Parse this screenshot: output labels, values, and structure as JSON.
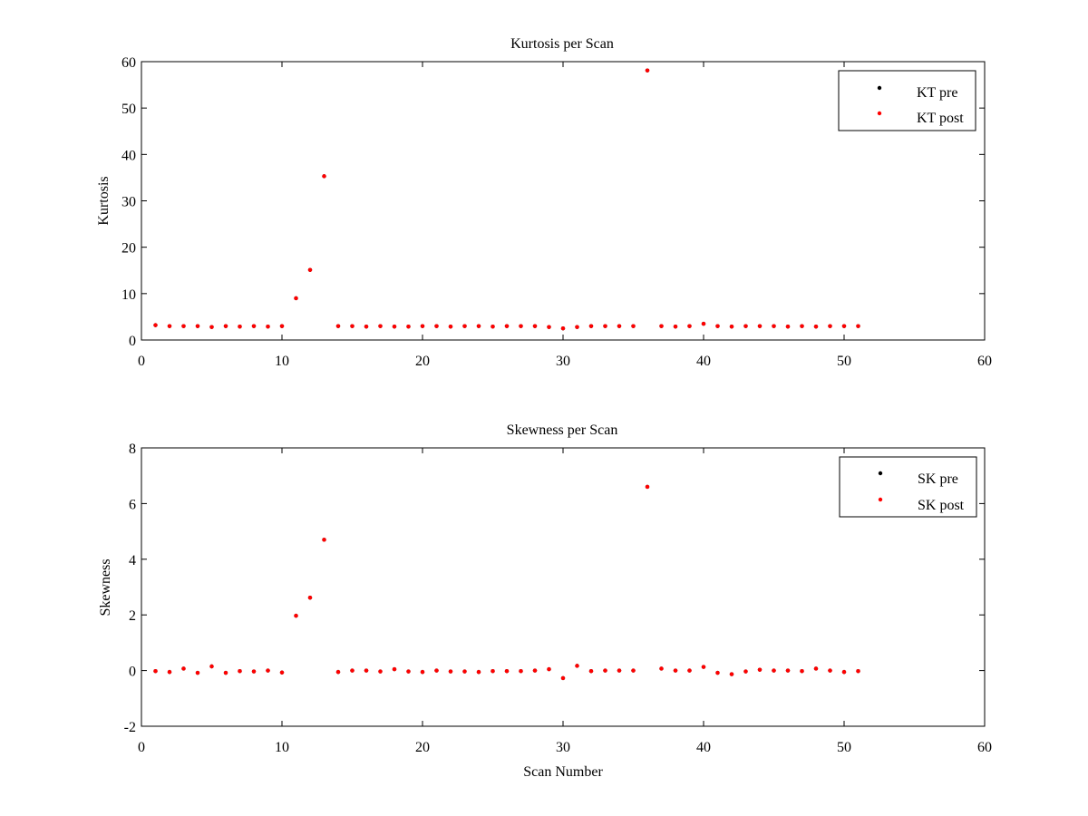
{
  "colors": {
    "pre": "#000000",
    "post": "#ff0000",
    "axes": "#000000",
    "background": "#ffffff"
  },
  "chart_data": [
    {
      "type": "scatter",
      "title": "Kurtosis per Scan",
      "xlabel": "",
      "ylabel": "Kurtosis",
      "xlim": [
        0,
        60
      ],
      "ylim": [
        0,
        60
      ],
      "xticks": [
        0,
        10,
        20,
        30,
        40,
        50,
        60
      ],
      "yticks": [
        0,
        10,
        20,
        30,
        40,
        50,
        60
      ],
      "grid": false,
      "legend_position": "top-right",
      "series": [
        {
          "name": "KT pre",
          "color": "#000000",
          "marker": "dot",
          "x": [
            1,
            2,
            3,
            4,
            5,
            6,
            7,
            8,
            9,
            10,
            11,
            12,
            13,
            14,
            15,
            16,
            17,
            18,
            19,
            20,
            21,
            22,
            23,
            24,
            25,
            26,
            27,
            28,
            29,
            30,
            31,
            32,
            33,
            34,
            35,
            36,
            37,
            38,
            39,
            40,
            41,
            42,
            43,
            44,
            45,
            46,
            47,
            48,
            49,
            50,
            51
          ],
          "y": [
            3.2,
            3.0,
            3.0,
            3.0,
            2.8,
            3.0,
            2.9,
            3.0,
            2.9,
            3.0,
            9.0,
            15.1,
            35.3,
            3.0,
            3.0,
            2.9,
            3.0,
            2.9,
            2.9,
            3.0,
            3.0,
            2.9,
            3.0,
            3.0,
            2.9,
            3.0,
            3.0,
            3.0,
            2.8,
            2.5,
            2.8,
            3.0,
            3.0,
            3.0,
            3.0,
            58.1,
            3.0,
            2.9,
            3.0,
            3.5,
            3.0,
            2.9,
            3.0,
            3.0,
            3.0,
            2.9,
            3.0,
            2.9,
            3.0,
            3.0,
            3.0
          ]
        },
        {
          "name": "KT post",
          "color": "#ff0000",
          "marker": "dot",
          "x": [
            1,
            2,
            3,
            4,
            5,
            6,
            7,
            8,
            9,
            10,
            11,
            12,
            13,
            14,
            15,
            16,
            17,
            18,
            19,
            20,
            21,
            22,
            23,
            24,
            25,
            26,
            27,
            28,
            29,
            30,
            31,
            32,
            33,
            34,
            35,
            36,
            37,
            38,
            39,
            40,
            41,
            42,
            43,
            44,
            45,
            46,
            47,
            48,
            49,
            50,
            51
          ],
          "y": [
            3.2,
            3.0,
            3.0,
            3.0,
            2.8,
            3.0,
            2.9,
            3.0,
            2.9,
            3.0,
            9.0,
            15.1,
            35.3,
            3.0,
            3.0,
            2.9,
            3.0,
            2.9,
            2.9,
            3.0,
            3.0,
            2.9,
            3.0,
            3.0,
            2.9,
            3.0,
            3.0,
            3.0,
            2.8,
            2.5,
            2.8,
            3.0,
            3.0,
            3.0,
            3.0,
            58.1,
            3.0,
            2.9,
            3.0,
            3.5,
            3.0,
            2.9,
            3.0,
            3.0,
            3.0,
            2.9,
            3.0,
            2.9,
            3.0,
            3.0,
            3.0
          ]
        }
      ]
    },
    {
      "type": "scatter",
      "title": "Skewness per Scan",
      "xlabel": "Scan Number",
      "ylabel": "Skewness",
      "xlim": [
        0,
        60
      ],
      "ylim": [
        -2,
        8
      ],
      "xticks": [
        0,
        10,
        20,
        30,
        40,
        50,
        60
      ],
      "yticks": [
        -2,
        0,
        2,
        4,
        6,
        8
      ],
      "grid": false,
      "legend_position": "top-right",
      "series": [
        {
          "name": "SK pre",
          "color": "#000000",
          "marker": "dot",
          "x": [
            1,
            2,
            3,
            4,
            5,
            6,
            7,
            8,
            9,
            10,
            11,
            12,
            13,
            14,
            15,
            16,
            17,
            18,
            19,
            20,
            21,
            22,
            23,
            24,
            25,
            26,
            27,
            28,
            29,
            30,
            31,
            32,
            33,
            34,
            35,
            36,
            37,
            38,
            39,
            40,
            41,
            42,
            43,
            44,
            45,
            46,
            47,
            48,
            49,
            50,
            51
          ],
          "y": [
            -0.02,
            -0.05,
            0.07,
            -0.08,
            0.15,
            -0.08,
            -0.02,
            -0.03,
            0.0,
            -0.07,
            1.97,
            2.62,
            4.7,
            -0.05,
            0.0,
            0.0,
            -0.03,
            0.05,
            -0.03,
            -0.05,
            0.0,
            -0.03,
            -0.03,
            -0.05,
            -0.02,
            -0.02,
            -0.02,
            0.0,
            0.05,
            -0.27,
            0.17,
            -0.02,
            0.0,
            0.0,
            0.0,
            6.6,
            0.07,
            0.0,
            0.0,
            0.13,
            -0.08,
            -0.13,
            -0.03,
            0.03,
            0.0,
            0.0,
            -0.02,
            0.07,
            0.0,
            -0.05,
            -0.02
          ]
        },
        {
          "name": "SK post",
          "color": "#ff0000",
          "marker": "dot",
          "x": [
            1,
            2,
            3,
            4,
            5,
            6,
            7,
            8,
            9,
            10,
            11,
            12,
            13,
            14,
            15,
            16,
            17,
            18,
            19,
            20,
            21,
            22,
            23,
            24,
            25,
            26,
            27,
            28,
            29,
            30,
            31,
            32,
            33,
            34,
            35,
            36,
            37,
            38,
            39,
            40,
            41,
            42,
            43,
            44,
            45,
            46,
            47,
            48,
            49,
            50,
            51
          ],
          "y": [
            -0.02,
            -0.05,
            0.07,
            -0.08,
            0.15,
            -0.08,
            -0.02,
            -0.03,
            0.0,
            -0.07,
            1.97,
            2.62,
            4.7,
            -0.05,
            0.0,
            0.0,
            -0.03,
            0.05,
            -0.03,
            -0.05,
            0.0,
            -0.03,
            -0.03,
            -0.05,
            -0.02,
            -0.02,
            -0.02,
            0.0,
            0.05,
            -0.27,
            0.17,
            -0.02,
            0.0,
            0.0,
            0.0,
            6.6,
            0.07,
            0.0,
            0.0,
            0.13,
            -0.08,
            -0.13,
            -0.03,
            0.03,
            0.0,
            0.0,
            -0.02,
            0.07,
            0.0,
            -0.05,
            -0.02
          ]
        }
      ]
    }
  ]
}
